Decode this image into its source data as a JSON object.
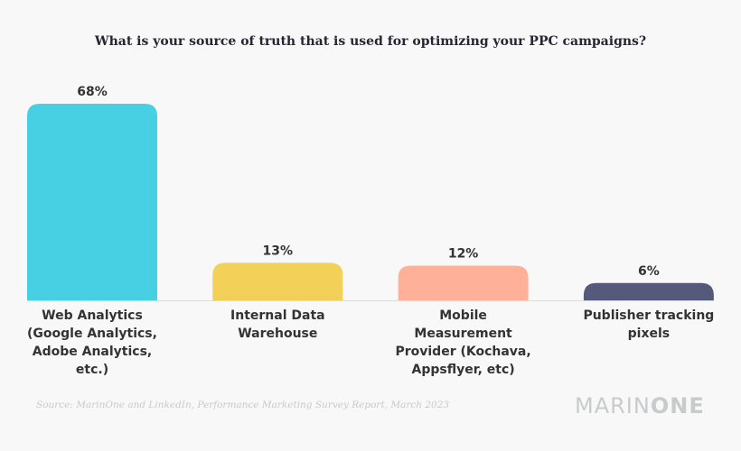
{
  "chart_data": {
    "type": "bar",
    "title": "What is your source of truth that is used for optimizing your PPC campaigns?",
    "categories": [
      "Web Analytics (Google Analytics, Adobe Analytics, etc.)",
      "Internal Data Warehouse",
      "Mobile Measurement Provider (Kochava, Appsflyer, etc)",
      "Publisher tracking pixels"
    ],
    "category_lines": [
      [
        "Web Analytics",
        "(Google Analytics,",
        "Adobe Analytics,",
        "etc.)"
      ],
      [
        "Internal Data",
        "Warehouse"
      ],
      [
        "Mobile",
        "Measurement",
        "Provider (Kochava,",
        "Appsflyer, etc)"
      ],
      [
        "Publisher tracking",
        "pixels"
      ]
    ],
    "values": [
      68,
      13,
      12,
      6
    ],
    "value_labels": [
      "68%",
      "13%",
      "12%",
      "6%"
    ],
    "colors": [
      "#47d0e3",
      "#f3d057",
      "#ffb098",
      "#55597b"
    ],
    "xlabel": "",
    "ylabel": "",
    "ylim": [
      0,
      68
    ],
    "grid": false,
    "legend": "none"
  },
  "footer": {
    "source": "Source: MarinOne and LinkedIn, Performance Marketing Survey Report, March 2023",
    "logo_light": "MARIN",
    "logo_bold": "ONE"
  }
}
